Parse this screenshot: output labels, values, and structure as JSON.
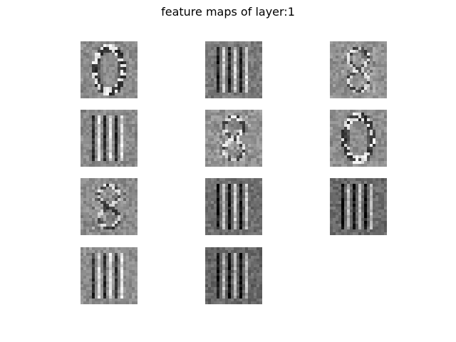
{
  "title": "feature maps of layer:1",
  "grid": {
    "rows": 4,
    "cols": 3
  },
  "panels": [
    {
      "index": 1,
      "pattern": "zero-glyph",
      "background": "#8c8c8c"
    },
    {
      "index": 2,
      "pattern": "vertical-bars",
      "background": "#7a7a7a"
    },
    {
      "index": 3,
      "pattern": "mottled-eight",
      "background": "#909090"
    },
    {
      "index": 4,
      "pattern": "vertical-bars",
      "background": "#8a8a8a"
    },
    {
      "index": 5,
      "pattern": "mottled-eight",
      "background": "#939393"
    },
    {
      "index": 6,
      "pattern": "zero-glyph",
      "background": "#8e8e8e"
    },
    {
      "index": 7,
      "pattern": "mottled-eight",
      "background": "#8b8b8b"
    },
    {
      "index": 8,
      "pattern": "vertical-bars",
      "background": "#6f6f6f"
    },
    {
      "index": 9,
      "pattern": "vertical-bars",
      "background": "#6a6a6a"
    },
    {
      "index": 10,
      "pattern": "vertical-bars",
      "background": "#8d8d8d"
    },
    {
      "index": 11,
      "pattern": "vertical-bars",
      "background": "#666666"
    }
  ]
}
